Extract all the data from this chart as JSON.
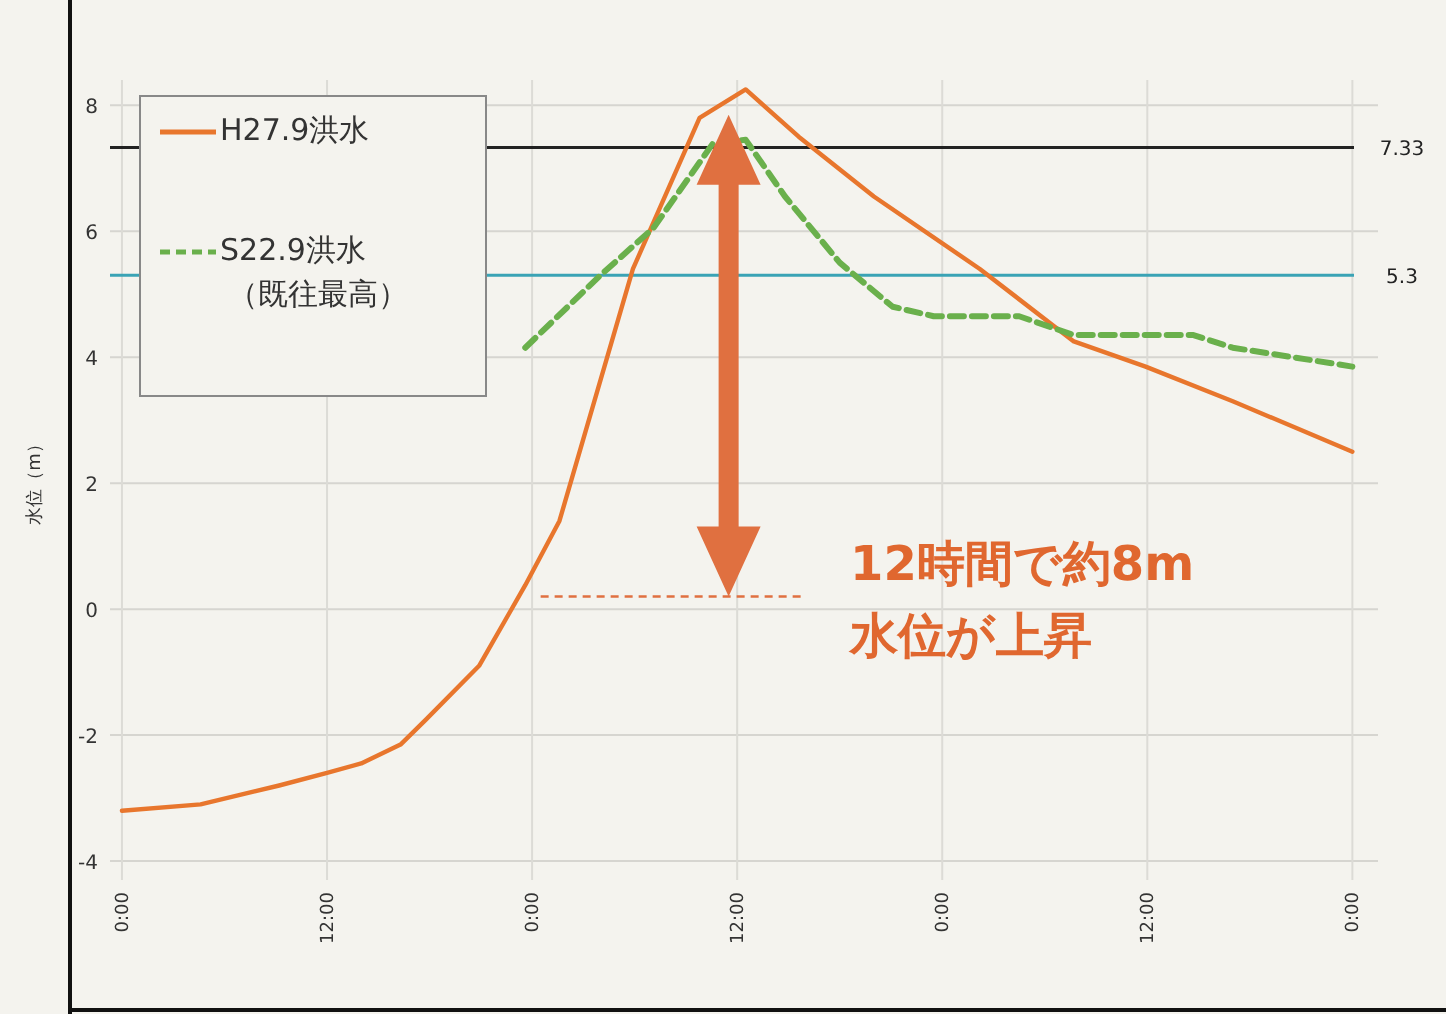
{
  "chart_data": {
    "type": "line",
    "ylabel": "水位（m）",
    "xlim": [
      "--09-08T23:18",
      "--09-12T01:30"
    ],
    "xticks": [
      {
        "value": "--09-09T00:00",
        "label": "0:00"
      },
      {
        "value": "--09-09T12:00",
        "label": "12:00"
      },
      {
        "value": "--09-10T00:00",
        "label": "0:00"
      },
      {
        "value": "--09-10T12:00",
        "label": "12:00"
      },
      {
        "value": "--09-11T00:00",
        "label": "0:00"
      },
      {
        "value": "--09-11T12:00",
        "label": "12:00"
      },
      {
        "value": "--09-12T00:00",
        "label": "0:00"
      }
    ],
    "ylim": [
      -4.3,
      8.4
    ],
    "yticks": [
      -4,
      -2,
      0,
      2,
      4,
      6,
      8
    ],
    "grid": true,
    "legend": "top left",
    "series": [
      {
        "name": "H27.9洪水",
        "color": "#e8762d",
        "line_style": "solid",
        "x": [
          "--09-09T00:00",
          "--09-09T04:36",
          "--09-09T09:12",
          "--09-09T12:00",
          "--09-09T14:00",
          "--09-09T16:18",
          "--09-09T17:48",
          "--09-09T20:54",
          "--09-09T23:36",
          "--09-10T01:36",
          "--09-10T05:54",
          "--09-10T09:48",
          "--09-10T12:30",
          "--09-10T15:36",
          "--09-10T20:00",
          "--09-11T02:12",
          "--09-11T07:42",
          "--09-11T11:54",
          "--09-11T17:00",
          "--09-12T00:00"
        ],
        "values": [
          -3.2,
          -3.1,
          -2.8,
          -2.6,
          -2.45,
          -2.15,
          -1.75,
          -0.9,
          0.38,
          1.4,
          5.4,
          7.8,
          8.25,
          7.5,
          6.55,
          5.4,
          4.25,
          3.85,
          3.3,
          2.5
        ]
      },
      {
        "name": "S22.9洪水（既往最高）",
        "color": "#6ab04c",
        "line_style": "dashed",
        "x": [
          "--09-09T23:36",
          "--09-10T04:00",
          "--09-10T07:06",
          "--09-10T10:36",
          "--09-10T12:30",
          "--09-10T14:48",
          "--09-10T18:00",
          "--09-10T21:06",
          "--09-10T23:30",
          "--09-11T04:30",
          "--09-11T07:42",
          "--09-11T14:42",
          "--09-11T17:00",
          "--09-12T00:00"
        ],
        "values": [
          4.15,
          5.3,
          6.05,
          7.4,
          7.45,
          6.55,
          5.5,
          4.8,
          4.65,
          4.65,
          4.35,
          4.35,
          4.15,
          3.85
        ]
      }
    ],
    "ref_lines": [
      {
        "axis": "y",
        "value": 7.33,
        "label": "7.33",
        "color": "#222222"
      },
      {
        "axis": "y",
        "value": 5.3,
        "label": "5.3",
        "color": "#3aa3b5"
      }
    ],
    "annotations": [
      "12時間で約8m\n水位が上昇"
    ]
  }
}
